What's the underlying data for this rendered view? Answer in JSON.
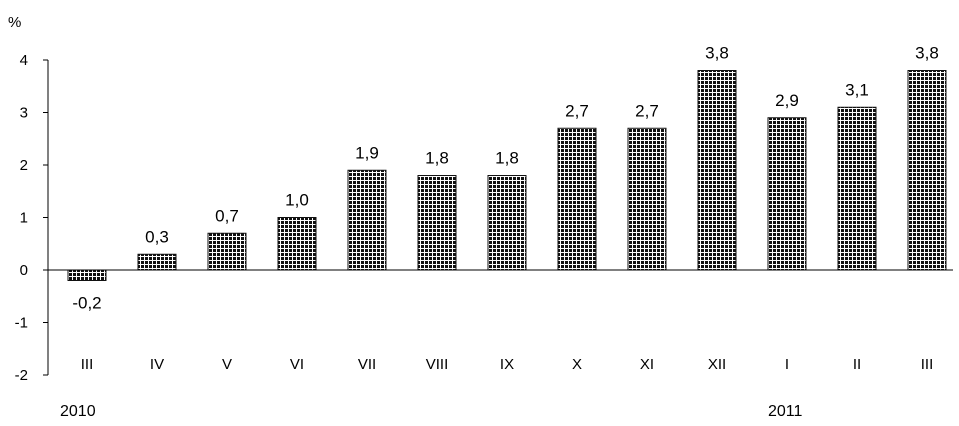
{
  "chart_data": {
    "type": "bar",
    "y_unit": "%",
    "categories": [
      "III",
      "IV",
      "V",
      "VI",
      "VII",
      "VIII",
      "IX",
      "X",
      "XI",
      "XII",
      "I",
      "II",
      "III"
    ],
    "values": [
      -0.2,
      0.3,
      0.7,
      1.0,
      1.9,
      1.8,
      1.8,
      2.7,
      2.7,
      3.8,
      2.9,
      3.1,
      3.8
    ],
    "value_labels": [
      "-0,2",
      "0,3",
      "0,7",
      "1,0",
      "1,9",
      "1,8",
      "1,8",
      "2,7",
      "2,7",
      "3,8",
      "2,9",
      "3,1",
      "3,8"
    ],
    "year_labels": [
      "2010",
      "2011"
    ],
    "yticks": [
      4,
      3,
      2,
      1,
      0,
      -1,
      -2
    ],
    "ylim": [
      -2,
      4
    ],
    "grid": false,
    "bar_fill": "#111111",
    "bar_pattern_line": "#ffffff"
  }
}
